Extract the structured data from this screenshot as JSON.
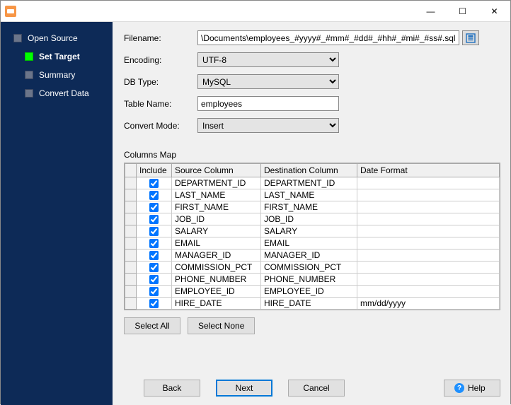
{
  "window": {
    "minimize_glyph": "—",
    "maximize_glyph": "☐",
    "close_glyph": "✕"
  },
  "sidebar": {
    "steps": [
      {
        "label": "Open Source",
        "active": false
      },
      {
        "label": "Set Target",
        "active": true
      },
      {
        "label": "Summary",
        "active": false
      },
      {
        "label": "Convert Data",
        "active": false
      }
    ]
  },
  "form": {
    "filename_label": "Filename:",
    "filename_value": "\\Documents\\employees_#yyyy#_#mm#_#dd#_#hh#_#mi#_#ss#.sql",
    "encoding_label": "Encoding:",
    "encoding_value": "UTF-8",
    "dbtype_label": "DB Type:",
    "dbtype_value": "MySQL",
    "tablename_label": "Table Name:",
    "tablename_value": "employees",
    "convertmode_label": "Convert Mode:",
    "convertmode_value": "Insert"
  },
  "columns_section": {
    "title": "Columns Map",
    "headers": {
      "include": "Include",
      "source": "Source Column",
      "dest": "Destination Column",
      "datefmt": "Date Format"
    },
    "col_widths": {
      "rowhdr": "16px",
      "include": "50px",
      "source": "126px",
      "dest": "136px",
      "datefmt": "auto"
    },
    "rows": [
      {
        "include": true,
        "source": "DEPARTMENT_ID",
        "dest": "DEPARTMENT_ID",
        "datefmt": ""
      },
      {
        "include": true,
        "source": "LAST_NAME",
        "dest": "LAST_NAME",
        "datefmt": ""
      },
      {
        "include": true,
        "source": "FIRST_NAME",
        "dest": "FIRST_NAME",
        "datefmt": ""
      },
      {
        "include": true,
        "source": "JOB_ID",
        "dest": "JOB_ID",
        "datefmt": ""
      },
      {
        "include": true,
        "source": "SALARY",
        "dest": "SALARY",
        "datefmt": ""
      },
      {
        "include": true,
        "source": "EMAIL",
        "dest": "EMAIL",
        "datefmt": ""
      },
      {
        "include": true,
        "source": "MANAGER_ID",
        "dest": "MANAGER_ID",
        "datefmt": ""
      },
      {
        "include": true,
        "source": "COMMISSION_PCT",
        "dest": "COMMISSION_PCT",
        "datefmt": ""
      },
      {
        "include": true,
        "source": "PHONE_NUMBER",
        "dest": "PHONE_NUMBER",
        "datefmt": ""
      },
      {
        "include": true,
        "source": "EMPLOYEE_ID",
        "dest": "EMPLOYEE_ID",
        "datefmt": ""
      },
      {
        "include": true,
        "source": "HIRE_DATE",
        "dest": "HIRE_DATE",
        "datefmt": "mm/dd/yyyy"
      }
    ]
  },
  "buttons": {
    "select_all": "Select All",
    "select_none": "Select None",
    "back": "Back",
    "next": "Next",
    "cancel": "Cancel",
    "help": "Help"
  },
  "colors": {
    "sidebar_bg": "#0d2a57",
    "active_step": "#00ff00",
    "primary_border": "#0078d7"
  }
}
